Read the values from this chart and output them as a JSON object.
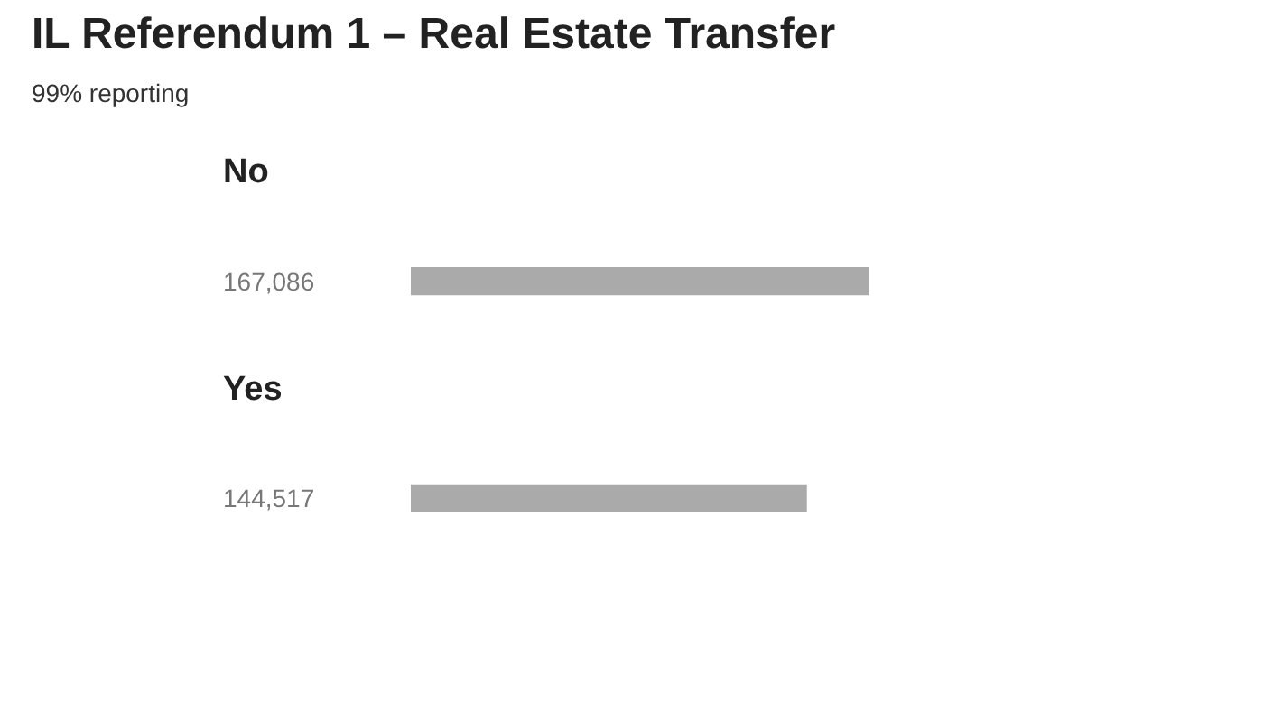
{
  "chart_data": {
    "type": "bar",
    "orientation": "horizontal",
    "title": "IL Referendum 1 – Real Estate Transfer",
    "annotations": [
      "99% reporting"
    ],
    "categories": [
      "No",
      "Yes"
    ],
    "values": [
      167086,
      144517
    ],
    "value_labels": [
      "167,086",
      "144,517"
    ],
    "color": "#aaaaaa",
    "grid": false,
    "tick_labels": false
  }
}
